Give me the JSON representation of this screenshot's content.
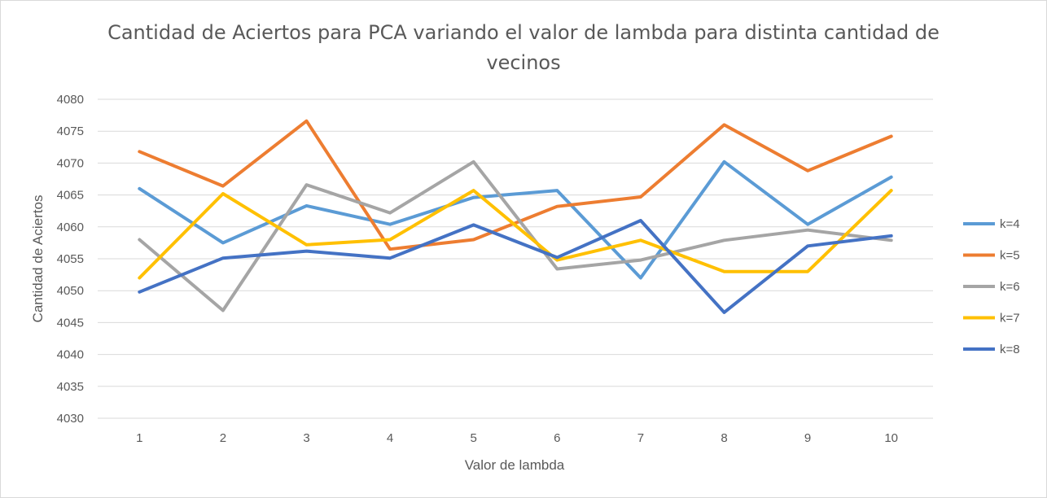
{
  "chart_data": {
    "type": "line",
    "title": "Cantidad de Aciertos para PCA variando el valor de lambda para distinta cantidad de vecinos",
    "xlabel": "Valor de lambda",
    "ylabel": "Cantidad de Aciertos",
    "categories": [
      "1",
      "2",
      "3",
      "4",
      "5",
      "6",
      "7",
      "8",
      "9",
      "10"
    ],
    "ylim": [
      4030,
      4080
    ],
    "yticks": [
      4030,
      4035,
      4040,
      4045,
      4050,
      4055,
      4060,
      4065,
      4070,
      4075,
      4080
    ],
    "grid": true,
    "legend_position": "right",
    "series": [
      {
        "name": "k=4",
        "color": "#5b9bd5",
        "values": [
          4066,
          4057.5,
          4063.3,
          4060.4,
          4064.6,
          4065.7,
          4052,
          4070.2,
          4060.4,
          4067.8
        ]
      },
      {
        "name": "k=5",
        "color": "#ed7d31",
        "values": [
          4071.8,
          4066.4,
          4076.6,
          4056.5,
          4058,
          4063.2,
          4064.7,
          4076,
          4068.8,
          4074.2
        ]
      },
      {
        "name": "k=6",
        "color": "#a5a5a5",
        "values": [
          4058,
          4046.9,
          4066.6,
          4062.2,
          4070.2,
          4053.4,
          4054.8,
          4057.9,
          4059.5,
          4057.9
        ]
      },
      {
        "name": "k=7",
        "color": "#ffc000",
        "values": [
          4052,
          4065.2,
          4057.2,
          4058,
          4065.7,
          4054.8,
          4057.9,
          4053,
          4053,
          4065.7
        ]
      },
      {
        "name": "k=8",
        "color": "#4472c4",
        "values": [
          4049.8,
          4055.1,
          4056.2,
          4055.1,
          4060.3,
          4055.2,
          4061,
          4046.6,
          4057,
          4058.6
        ]
      }
    ]
  }
}
